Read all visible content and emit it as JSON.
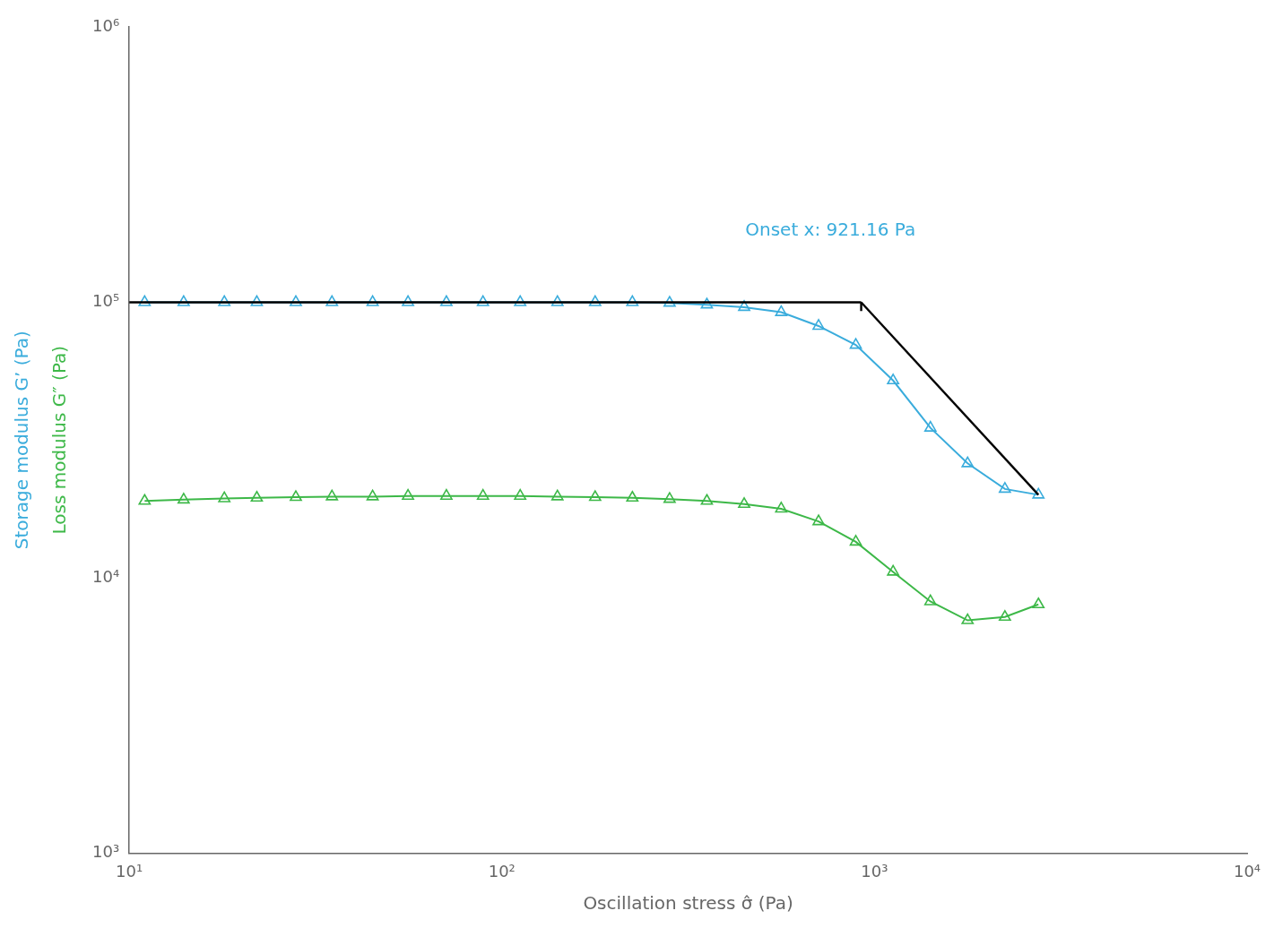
{
  "chart_data": {
    "type": "line",
    "xlabel": "Oscillation stress σ̂ (Pa)",
    "log": true,
    "grid": false,
    "xlim": [
      10,
      10000
    ],
    "ylim": [
      1000,
      1000000
    ],
    "xticks": [
      {
        "value": 10,
        "label": "10¹"
      },
      {
        "value": 100,
        "label": "10²"
      },
      {
        "value": 1000,
        "label": "10³"
      },
      {
        "value": 10000,
        "label": "10⁴"
      }
    ],
    "yticks": [
      {
        "value": 1000,
        "label": "10³"
      },
      {
        "value": 10000,
        "label": "10⁴"
      },
      {
        "value": 100000,
        "label": "10⁵"
      },
      {
        "value": 1000000,
        "label": "10⁶"
      }
    ],
    "series": [
      {
        "name": "Storage modulus G’ (Pa)",
        "color": "#3AACDC",
        "marker": "triangle",
        "line_style": "solid",
        "x": [
          11,
          14,
          18,
          22,
          28,
          35,
          45,
          56,
          71,
          89,
          112,
          141,
          178,
          224,
          282,
          355,
          447,
          562,
          708,
          891,
          1122,
          1413,
          1778,
          2239,
          2754
        ],
        "values": [
          100000,
          100000,
          100000,
          100000,
          100000,
          100000,
          100000,
          100000,
          100000,
          100000,
          100000,
          100000,
          100000,
          100000,
          99500,
          98000,
          96000,
          92000,
          82000,
          70000,
          52000,
          35000,
          26000,
          21000,
          20000
        ]
      },
      {
        "name": "Loss modulus G″ (Pa)",
        "color": "#3DB848",
        "marker": "triangle",
        "line_style": "solid",
        "x": [
          11,
          14,
          18,
          22,
          28,
          35,
          45,
          56,
          71,
          89,
          112,
          141,
          178,
          224,
          282,
          355,
          447,
          562,
          708,
          891,
          1122,
          1413,
          1778,
          2239,
          2754
        ],
        "values": [
          19000,
          19200,
          19400,
          19500,
          19600,
          19700,
          19700,
          19800,
          19800,
          19800,
          19800,
          19700,
          19600,
          19500,
          19300,
          19000,
          18500,
          17800,
          16000,
          13500,
          10500,
          8200,
          7000,
          7200,
          8000
        ]
      },
      {
        "color": "#000000",
        "marker": "none",
        "line_style": "solid",
        "x": [
          10,
          921.16
        ],
        "values": [
          100000,
          100000
        ]
      },
      {
        "color": "#000000",
        "marker": "none",
        "line_style": "solid",
        "x": [
          921.16,
          921.16
        ],
        "values": [
          100000,
          93000
        ]
      },
      {
        "color": "#000000",
        "marker": "none",
        "line_style": "solid",
        "x": [
          921.16,
          2754
        ],
        "values": [
          100000,
          20000
        ]
      }
    ],
    "annotations": [
      {
        "text": "Onset x: 921.16 Pa",
        "x": 450,
        "y": 175000,
        "color": "#3AACDC"
      }
    ]
  }
}
